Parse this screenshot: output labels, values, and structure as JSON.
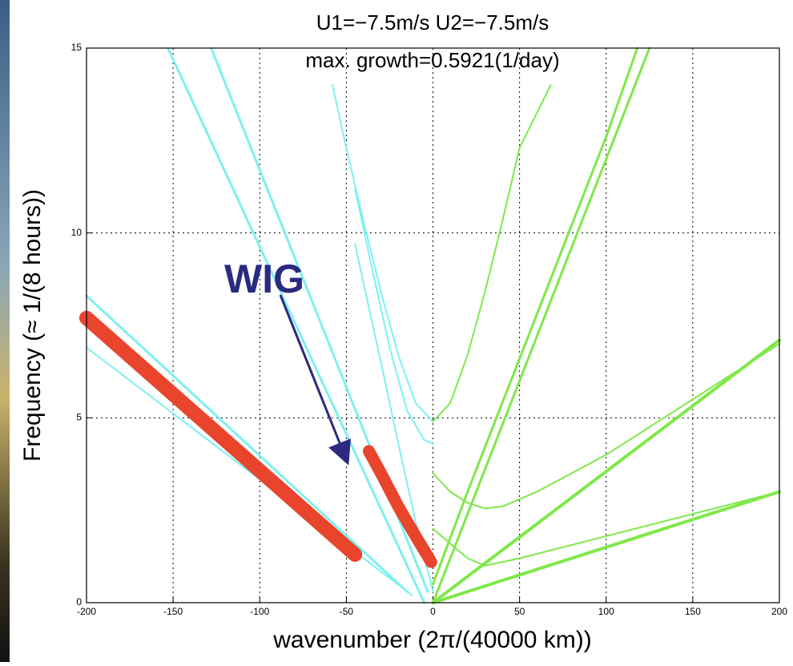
{
  "chart_data": {
    "type": "line",
    "title": "U1=−7.5m/s   U2=−7.5m/s",
    "subtitle": "max. growth=0.5921(1/day)",
    "x_label": "wavenumber (2π/(40000 km))",
    "y_label": "Frequency (≈ 1/(8 hours))",
    "annotations": [
      {
        "text": "WIG"
      }
    ],
    "xlim": [
      -200,
      200
    ],
    "xticks": [
      -200,
      -150,
      -100,
      -50,
      0,
      50,
      100,
      150,
      200
    ],
    "ylim": [
      0,
      15
    ],
    "yticks": [
      0,
      5,
      10,
      15
    ],
    "grid": true,
    "series": [
      {
        "color": "#7ef0f0",
        "linewidth": 3,
        "x": [
          -200,
          -15
        ],
        "values": [
          8.3,
          0.3
        ]
      },
      {
        "color": "#7ef0f0",
        "linewidth": 2,
        "x": [
          -200,
          -12
        ],
        "values": [
          6.9,
          0.2
        ]
      },
      {
        "color": "#7ef0f0",
        "linewidth": 3,
        "x": [
          -153,
          -5
        ],
        "values": [
          15,
          0
        ]
      },
      {
        "color": "#7ef0f0",
        "linewidth": 3,
        "x": [
          -128,
          -3
        ],
        "values": [
          15,
          0.3
        ]
      },
      {
        "color": "#7ef0f0",
        "linewidth": 2,
        "x": [
          -58,
          -50,
          -40,
          -30,
          -20,
          -10,
          0
        ],
        "values": [
          14,
          12.3,
          10.3,
          8.4,
          6.7,
          5.4,
          4.9
        ]
      },
      {
        "color": "#7ef0f0",
        "linewidth": 2,
        "x": [
          -45,
          -35,
          -25,
          -15,
          -5,
          0
        ],
        "values": [
          11.2,
          9.0,
          6.9,
          5.2,
          4.4,
          4.3
        ]
      },
      {
        "color": "#7ef0f0",
        "linewidth": 2,
        "x": [
          -45,
          -30,
          -20,
          -10,
          0
        ],
        "values": [
          9.7,
          6.5,
          4.3,
          2.2,
          0.3
        ]
      },
      {
        "color": "#7fe84a",
        "linewidth": 2,
        "x": [
          0,
          10,
          20,
          30,
          40,
          50,
          68
        ],
        "values": [
          4.9,
          5.4,
          6.7,
          8.4,
          10.3,
          12.3,
          14
        ]
      },
      {
        "color": "#7fe84a",
        "linewidth": 3,
        "x": [
          0,
          20,
          40,
          60,
          80,
          100,
          125
        ],
        "values": [
          0,
          2.4,
          4.8,
          7.2,
          9.6,
          12,
          15
        ]
      },
      {
        "color": "#7fe84a",
        "linewidth": 3,
        "x": [
          0,
          20,
          40,
          60,
          80,
          100,
          118
        ],
        "values": [
          0.5,
          3,
          5.4,
          7.8,
          10.2,
          12.6,
          15
        ]
      },
      {
        "color": "#7fe84a",
        "linewidth": 4,
        "x": [
          0,
          200
        ],
        "values": [
          0,
          7.1
        ]
      },
      {
        "color": "#7fe84a",
        "linewidth": 4,
        "x": [
          0,
          200
        ],
        "values": [
          0,
          3.0
        ]
      },
      {
        "color": "#7fe84a",
        "linewidth": 2,
        "x": [
          0,
          10,
          20,
          30,
          40,
          60,
          100,
          150,
          200
        ],
        "values": [
          3.5,
          3.0,
          2.7,
          2.55,
          2.6,
          3.0,
          4.0,
          5.5,
          7.0
        ]
      },
      {
        "color": "#7fe84a",
        "linewidth": 2,
        "x": [
          0,
          10,
          20,
          30,
          50,
          100,
          150,
          200
        ],
        "values": [
          2.0,
          1.6,
          1.2,
          1.0,
          1.2,
          1.8,
          2.4,
          3.0
        ]
      },
      {
        "color": "#e8452c",
        "linewidth": 18,
        "x": [
          -200,
          -45
        ],
        "values": [
          7.7,
          1.3
        ]
      },
      {
        "color": "#e8452c",
        "linewidth": 15,
        "x": [
          -37,
          -30,
          -20,
          -10,
          -1
        ],
        "values": [
          4.1,
          3.5,
          2.6,
          1.8,
          1.1
        ]
      }
    ]
  }
}
